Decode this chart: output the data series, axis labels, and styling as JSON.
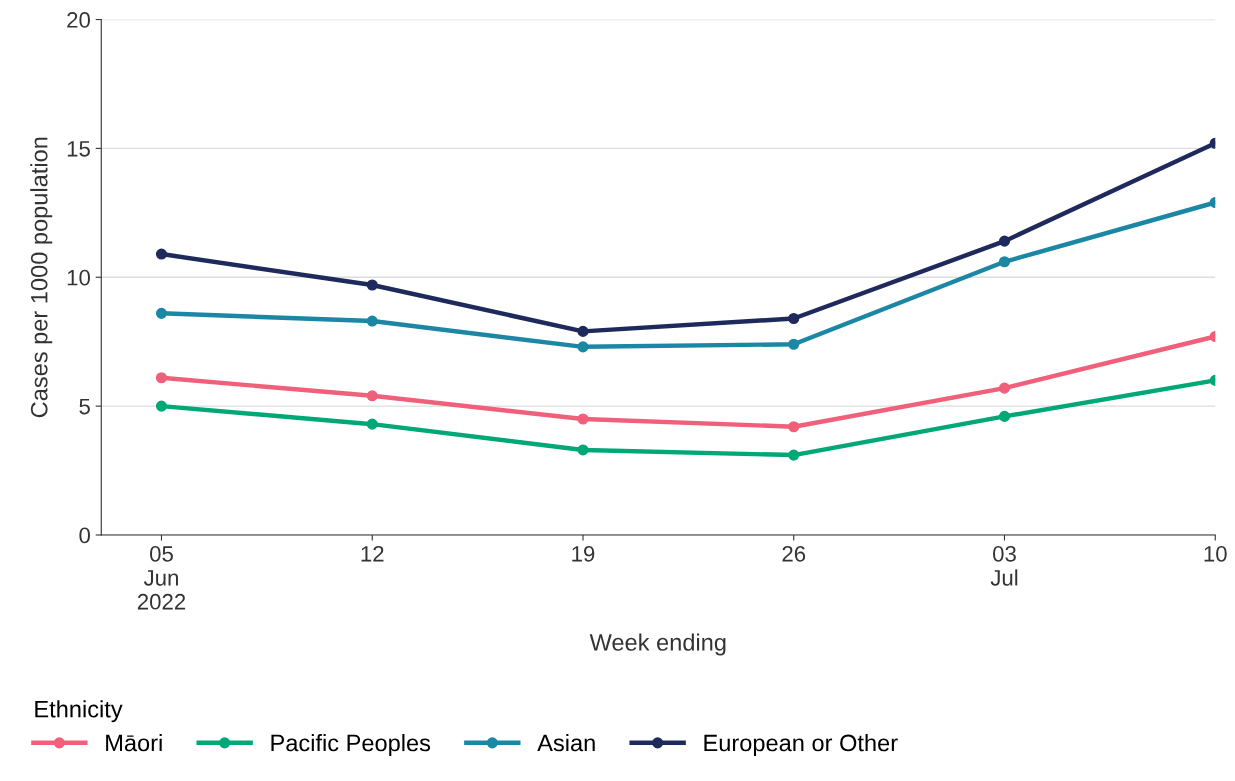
{
  "chart_data": {
    "type": "line",
    "xlabel": "Week ending",
    "ylabel": "Cases per 1000 population",
    "legend_title": "Ethnicity",
    "x": [
      "2022-06-05",
      "2022-06-12",
      "2022-06-19",
      "2022-06-26",
      "2022-07-03",
      "2022-07-10"
    ],
    "series": [
      {
        "name": "Māori",
        "color": "#f0607a",
        "values": [
          6.1,
          5.4,
          4.5,
          4.2,
          5.7,
          7.7
        ]
      },
      {
        "name": "Pacific Peoples",
        "color": "#00a878",
        "values": [
          5.0,
          4.3,
          3.3,
          3.1,
          4.6,
          6.0
        ]
      },
      {
        "name": "Asian",
        "color": "#1b87a5",
        "values": [
          8.6,
          8.3,
          7.3,
          7.4,
          10.6,
          12.9
        ]
      },
      {
        "name": "European or Other",
        "color": "#1f2a5c",
        "values": [
          10.9,
          9.7,
          7.9,
          8.4,
          11.4,
          15.2
        ]
      }
    ],
    "xlim": [
      "2022-06-03",
      "2022-07-10"
    ],
    "xticks": [
      {
        "value": "2022-06-05",
        "label": "05\nJun\n2022"
      },
      {
        "value": "2022-06-12",
        "label": "12"
      },
      {
        "value": "2022-06-19",
        "label": "19"
      },
      {
        "value": "2022-06-26",
        "label": "26"
      },
      {
        "value": "2022-07-03",
        "label": "03\nJul"
      },
      {
        "value": "2022-07-10",
        "label": "10"
      }
    ],
    "ylim": [
      0,
      20
    ],
    "yticks": [
      0,
      5,
      10,
      15,
      20
    ],
    "grid": "y",
    "legend": "bottom",
    "marker": "circle",
    "line_style": "solid"
  }
}
